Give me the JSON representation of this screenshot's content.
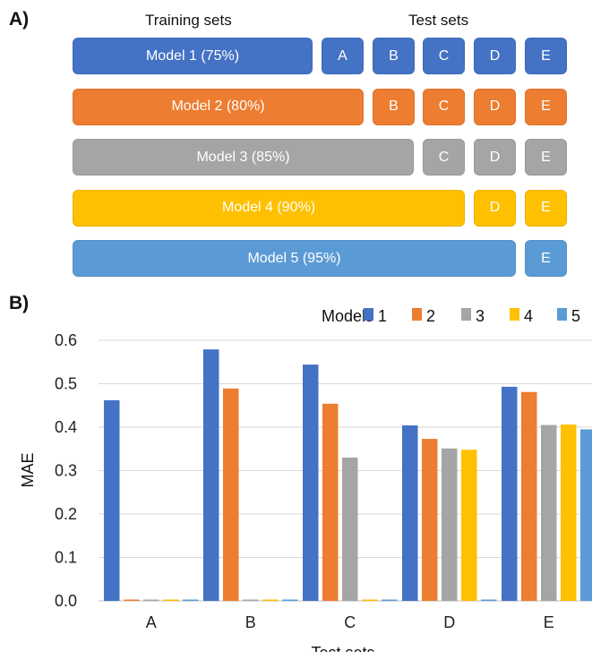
{
  "panel_a": {
    "label": "A)",
    "training_header": "Training sets",
    "test_header": "Test sets",
    "rows": [
      {
        "model": "Model 1 (75%)",
        "color": "#4472C4",
        "tests": [
          "A",
          "B",
          "C",
          "D",
          "E"
        ]
      },
      {
        "model": "Model 2 (80%)",
        "color": "#ED7D31",
        "tests": [
          "B",
          "C",
          "D",
          "E"
        ]
      },
      {
        "model": "Model 3 (85%)",
        "color": "#A5A5A5",
        "tests": [
          "C",
          "D",
          "E"
        ]
      },
      {
        "model": "Model 4 (90%)",
        "color": "#FFC000",
        "tests": [
          "D",
          "E"
        ]
      },
      {
        "model": "Model 5 (95%)",
        "color": "#5B9BD5",
        "tests": [
          "E"
        ]
      }
    ]
  },
  "panel_b": {
    "label": "B)"
  },
  "chart_data": {
    "type": "bar",
    "xlabel": "Test sets",
    "ylabel": "MAE",
    "ylim": [
      0,
      0.6
    ],
    "yticks": [
      "0.0",
      "0.1",
      "0.2",
      "0.3",
      "0.4",
      "0.5",
      "0.6"
    ],
    "grid": true,
    "legend_title": "Models",
    "legend_position": "top-right",
    "categories": [
      "A",
      "B",
      "C",
      "D",
      "E"
    ],
    "series": [
      {
        "name": "1",
        "color": "#4472C4",
        "values": [
          0.462,
          0.579,
          0.544,
          0.404,
          0.493
        ]
      },
      {
        "name": "2",
        "color": "#ED7D31",
        "values": [
          0.0,
          0.489,
          0.454,
          0.373,
          0.481
        ]
      },
      {
        "name": "3",
        "color": "#A5A5A5",
        "values": [
          0.0,
          0.0,
          0.33,
          0.351,
          0.405
        ]
      },
      {
        "name": "4",
        "color": "#FFC000",
        "values": [
          0.0,
          0.0,
          0.0,
          0.348,
          0.406
        ]
      },
      {
        "name": "5",
        "color": "#5B9BD5",
        "values": [
          0.0,
          0.0,
          0.0,
          0.0,
          0.395
        ]
      }
    ]
  }
}
